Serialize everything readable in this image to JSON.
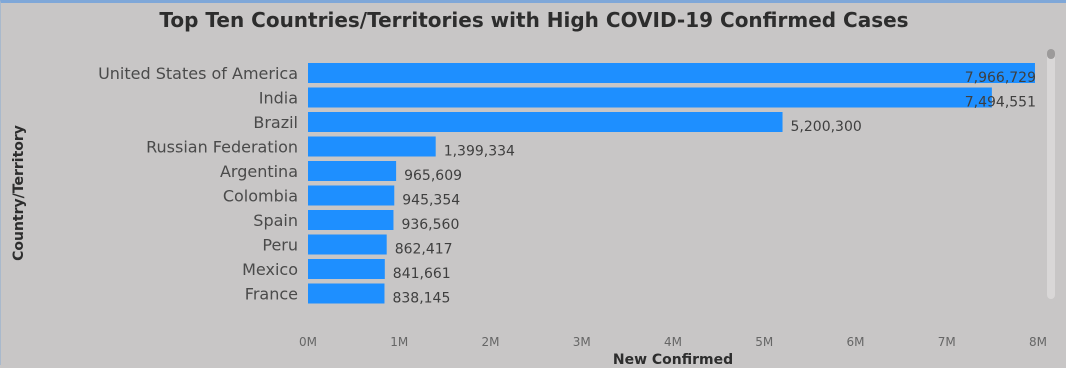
{
  "chart_data": {
    "type": "bar",
    "orientation": "horizontal",
    "title": "Top Ten Countries/Territories with High COVID-19 Confirmed Cases",
    "xlabel": "New Confirmed",
    "ylabel": "Country/Territory",
    "categories": [
      "United States of America",
      "India",
      "Brazil",
      "Russian Federation",
      "Argentina",
      "Colombia",
      "Spain",
      "Peru",
      "Mexico",
      "France"
    ],
    "values": [
      7966729,
      7494551,
      5200300,
      1399334,
      965609,
      945354,
      936560,
      862417,
      841661,
      838145
    ],
    "data_labels": [
      "7,966,729",
      "7,494,551",
      "5,200,300",
      "1,399,334",
      "965,609",
      "945,354",
      "936,560",
      "862,417",
      "841,661",
      "838,145"
    ],
    "xlim": [
      0,
      8000000
    ],
    "x_ticks": [
      0,
      1000000,
      2000000,
      3000000,
      4000000,
      5000000,
      6000000,
      7000000,
      8000000
    ],
    "x_tick_labels": [
      "0M",
      "1M",
      "2M",
      "3M",
      "4M",
      "5M",
      "6M",
      "7M",
      "8M"
    ],
    "grid": false,
    "legend": "none",
    "bar_color": "#1e8fff",
    "background_color": "#c8c6c6"
  },
  "ui": {
    "scrollbar": true
  }
}
